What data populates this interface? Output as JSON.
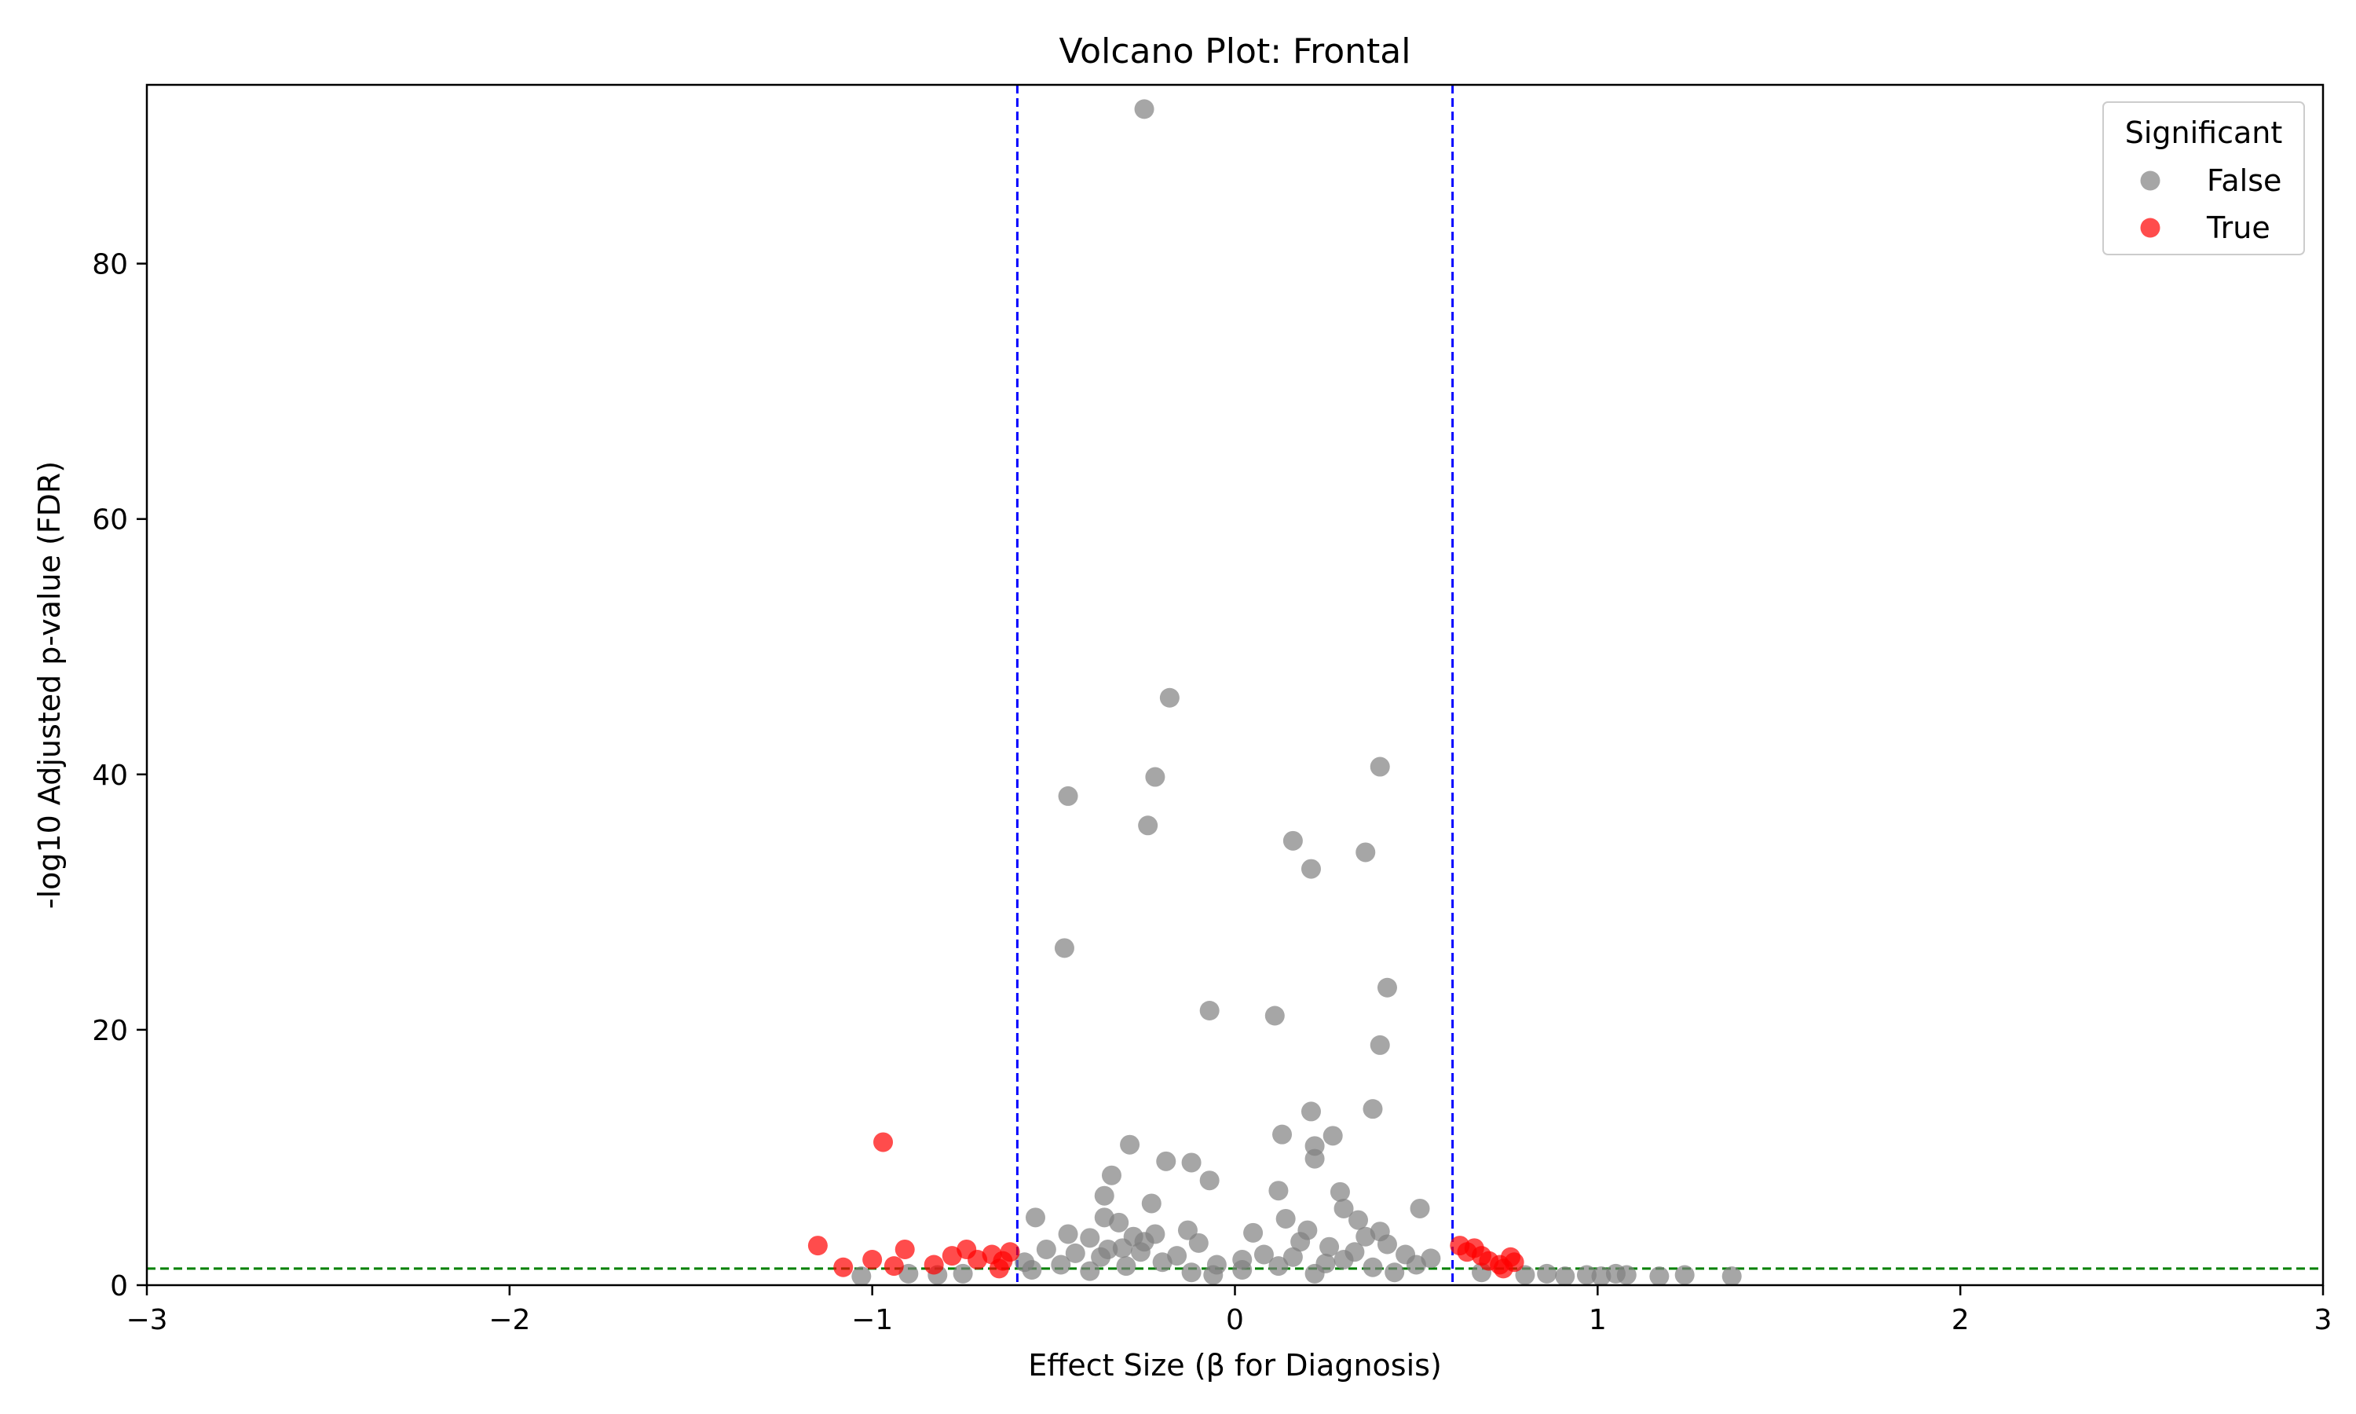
{
  "chart_data": {
    "type": "scatter",
    "title": "Volcano Plot: Frontal",
    "xlabel": "Effect Size (β for Diagnosis)",
    "ylabel": "-log10 Adjusted p-value (FDR)",
    "xlim": [
      -3,
      3
    ],
    "ylim": [
      0,
      94
    ],
    "x_ticks": [
      -3,
      -2,
      -1,
      0,
      1,
      2,
      3
    ],
    "x_tick_labels": [
      "−3",
      "−2",
      "−1",
      "0",
      "1",
      "2",
      "3"
    ],
    "y_ticks": [
      0,
      20,
      40,
      60,
      80
    ],
    "y_tick_labels": [
      "0",
      "20",
      "40",
      "60",
      "80"
    ],
    "grid": false,
    "legend": {
      "title": "Significant",
      "placement": "top-right",
      "entries": [
        {
          "label": "False",
          "color": "#808080"
        },
        {
          "label": "True",
          "color": "#ff0000"
        }
      ]
    },
    "reference_lines": {
      "effect_thresholds": [
        -0.6,
        0.6
      ],
      "effect_color": "#0000ff",
      "fdr_threshold": 1.3,
      "fdr_color": "#008000"
    },
    "series": [
      {
        "name": "False",
        "color": "#808080",
        "points": [
          [
            -0.25,
            92.1
          ],
          [
            -0.18,
            46.0
          ],
          [
            0.4,
            40.6
          ],
          [
            -0.22,
            39.8
          ],
          [
            -0.46,
            38.3
          ],
          [
            -0.24,
            36.0
          ],
          [
            0.16,
            34.8
          ],
          [
            0.36,
            33.9
          ],
          [
            0.21,
            32.6
          ],
          [
            -0.47,
            26.4
          ],
          [
            0.42,
            23.3
          ],
          [
            -0.07,
            21.5
          ],
          [
            0.11,
            21.1
          ],
          [
            0.4,
            18.8
          ],
          [
            0.21,
            13.6
          ],
          [
            0.38,
            13.8
          ],
          [
            0.27,
            11.7
          ],
          [
            0.13,
            11.8
          ],
          [
            -0.29,
            11.0
          ],
          [
            0.22,
            10.9
          ],
          [
            0.22,
            9.9
          ],
          [
            -0.19,
            9.7
          ],
          [
            -0.12,
            9.6
          ],
          [
            -0.34,
            8.6
          ],
          [
            -0.07,
            8.2
          ],
          [
            0.12,
            7.4
          ],
          [
            0.29,
            7.3
          ],
          [
            -0.36,
            7.0
          ],
          [
            -0.23,
            6.4
          ],
          [
            0.3,
            6.0
          ],
          [
            0.51,
            6.0
          ],
          [
            -0.55,
            5.3
          ],
          [
            0.14,
            5.2
          ],
          [
            0.34,
            5.1
          ],
          [
            -0.36,
            5.3
          ],
          [
            -0.32,
            4.9
          ],
          [
            0.2,
            4.3
          ],
          [
            -0.13,
            4.3
          ],
          [
            0.05,
            4.1
          ],
          [
            0.4,
            4.2
          ],
          [
            -0.46,
            4.0
          ],
          [
            -0.4,
            3.7
          ],
          [
            -0.28,
            3.8
          ],
          [
            -0.22,
            4.0
          ],
          [
            -0.1,
            3.3
          ],
          [
            0.18,
            3.4
          ],
          [
            0.26,
            3.0
          ],
          [
            0.42,
            3.2
          ],
          [
            -0.31,
            2.9
          ],
          [
            -0.25,
            3.4
          ],
          [
            -0.52,
            2.8
          ],
          [
            -0.44,
            2.5
          ],
          [
            -0.37,
            2.2
          ],
          [
            -0.16,
            2.3
          ],
          [
            0.08,
            2.4
          ],
          [
            0.16,
            2.2
          ],
          [
            0.33,
            2.6
          ],
          [
            0.47,
            2.4
          ],
          [
            0.54,
            2.1
          ],
          [
            -0.58,
            1.8
          ],
          [
            -0.48,
            1.6
          ],
          [
            -0.3,
            1.5
          ],
          [
            -0.2,
            1.8
          ],
          [
            -0.05,
            1.6
          ],
          [
            0.02,
            1.2
          ],
          [
            0.12,
            1.5
          ],
          [
            0.25,
            1.7
          ],
          [
            0.38,
            1.4
          ],
          [
            0.5,
            1.6
          ],
          [
            -0.56,
            1.2
          ],
          [
            -0.4,
            1.1
          ],
          [
            -0.12,
            1.0
          ],
          [
            0.22,
            0.9
          ],
          [
            0.44,
            1.0
          ],
          [
            -0.06,
            0.8
          ],
          [
            -0.9,
            0.9
          ],
          [
            -0.82,
            0.8
          ],
          [
            -0.75,
            0.9
          ],
          [
            -1.03,
            0.7
          ],
          [
            0.68,
            1.0
          ],
          [
            0.8,
            0.8
          ],
          [
            0.86,
            0.9
          ],
          [
            0.91,
            0.7
          ],
          [
            0.97,
            0.8
          ],
          [
            1.01,
            0.7
          ],
          [
            1.05,
            0.9
          ],
          [
            1.08,
            0.8
          ],
          [
            1.17,
            0.7
          ],
          [
            1.24,
            0.8
          ],
          [
            1.37,
            0.7
          ],
          [
            -0.35,
            2.8
          ],
          [
            -0.26,
            2.6
          ],
          [
            0.02,
            2.0
          ],
          [
            0.3,
            2.0
          ],
          [
            0.36,
            3.8
          ]
        ]
      },
      {
        "name": "True",
        "color": "#ff0000",
        "points": [
          [
            -0.97,
            11.2
          ],
          [
            -1.15,
            3.1
          ],
          [
            -0.91,
            2.8
          ],
          [
            -1.0,
            2.0
          ],
          [
            -1.08,
            1.4
          ],
          [
            -0.94,
            1.5
          ],
          [
            -0.83,
            1.6
          ],
          [
            -0.78,
            2.3
          ],
          [
            -0.74,
            2.8
          ],
          [
            -0.71,
            2.0
          ],
          [
            -0.67,
            2.4
          ],
          [
            -0.64,
            1.9
          ],
          [
            -0.62,
            2.6
          ],
          [
            -0.65,
            1.3
          ],
          [
            0.62,
            3.1
          ],
          [
            0.64,
            2.6
          ],
          [
            0.66,
            2.9
          ],
          [
            0.68,
            2.3
          ],
          [
            0.7,
            1.9
          ],
          [
            0.73,
            1.6
          ],
          [
            0.76,
            2.2
          ],
          [
            0.77,
            1.8
          ],
          [
            0.74,
            1.3
          ]
        ]
      }
    ]
  }
}
